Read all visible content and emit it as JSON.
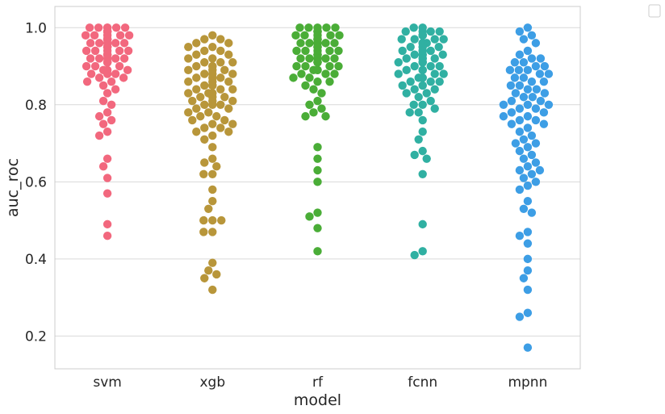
{
  "chart_data": {
    "type": "scatter",
    "subtype": "swarm",
    "xlabel": "model",
    "ylabel": "auc_roc",
    "categories": [
      "svm",
      "xgb",
      "rf",
      "fcnn",
      "mpnn"
    ],
    "ylim": [
      0.115,
      1.055
    ],
    "yticks": [
      0.2,
      0.4,
      0.6,
      0.8,
      1.0
    ],
    "ytick_labels": [
      "0.2",
      "0.4",
      "0.6",
      "0.8",
      "1.0"
    ],
    "grid": "horizontal",
    "legend": "top-right (empty)",
    "colors": [
      "#f2687e",
      "#b8963a",
      "#4aad37",
      "#30b0a2",
      "#3d9ee5"
    ],
    "series": [
      {
        "values": [
          1.0,
          1.0,
          1.0,
          1.0,
          1.0,
          1.0,
          0.99,
          0.99,
          0.99,
          0.99,
          0.99,
          0.98,
          0.98,
          0.98,
          0.98,
          0.98,
          0.97,
          0.97,
          0.97,
          0.97,
          0.97,
          0.96,
          0.96,
          0.96,
          0.96,
          0.96,
          0.95,
          0.95,
          0.95,
          0.95,
          0.95,
          0.94,
          0.94,
          0.94,
          0.94,
          0.94,
          0.93,
          0.93,
          0.93,
          0.93,
          0.93,
          0.92,
          0.92,
          0.92,
          0.92,
          0.92,
          0.91,
          0.91,
          0.91,
          0.91,
          0.9,
          0.9,
          0.9,
          0.89,
          0.89,
          0.89,
          0.88,
          0.88,
          0.88,
          0.87,
          0.87,
          0.86,
          0.86,
          0.85,
          0.84,
          0.83,
          0.81,
          0.8,
          0.78,
          0.77,
          0.76,
          0.75,
          0.73,
          0.72,
          0.66,
          0.64,
          0.61,
          0.57,
          0.49,
          0.46
        ]
      },
      {
        "values": [
          0.98,
          0.97,
          0.97,
          0.96,
          0.96,
          0.95,
          0.95,
          0.94,
          0.94,
          0.93,
          0.93,
          0.92,
          0.92,
          0.91,
          0.91,
          0.91,
          0.9,
          0.9,
          0.9,
          0.89,
          0.89,
          0.89,
          0.88,
          0.88,
          0.88,
          0.87,
          0.87,
          0.87,
          0.86,
          0.86,
          0.86,
          0.85,
          0.85,
          0.85,
          0.84,
          0.84,
          0.84,
          0.83,
          0.83,
          0.83,
          0.82,
          0.82,
          0.82,
          0.81,
          0.81,
          0.81,
          0.8,
          0.8,
          0.8,
          0.79,
          0.79,
          0.78,
          0.78,
          0.77,
          0.77,
          0.76,
          0.76,
          0.75,
          0.75,
          0.74,
          0.74,
          0.73,
          0.73,
          0.72,
          0.71,
          0.69,
          0.66,
          0.65,
          0.64,
          0.62,
          0.62,
          0.58,
          0.55,
          0.53,
          0.5,
          0.5,
          0.5,
          0.47,
          0.47,
          0.39,
          0.37,
          0.36,
          0.35,
          0.32
        ]
      },
      {
        "values": [
          1.0,
          1.0,
          1.0,
          1.0,
          1.0,
          0.99,
          0.99,
          0.99,
          0.99,
          0.99,
          0.98,
          0.98,
          0.98,
          0.98,
          0.98,
          0.97,
          0.97,
          0.97,
          0.97,
          0.97,
          0.96,
          0.96,
          0.96,
          0.96,
          0.96,
          0.95,
          0.95,
          0.95,
          0.95,
          0.95,
          0.94,
          0.94,
          0.94,
          0.94,
          0.94,
          0.93,
          0.93,
          0.93,
          0.93,
          0.93,
          0.92,
          0.92,
          0.92,
          0.92,
          0.92,
          0.91,
          0.91,
          0.91,
          0.91,
          0.9,
          0.9,
          0.9,
          0.9,
          0.89,
          0.89,
          0.89,
          0.88,
          0.88,
          0.88,
          0.87,
          0.87,
          0.86,
          0.86,
          0.85,
          0.84,
          0.83,
          0.81,
          0.8,
          0.79,
          0.78,
          0.77,
          0.77,
          0.69,
          0.66,
          0.63,
          0.6,
          0.52,
          0.51,
          0.48,
          0.42
        ]
      },
      {
        "values": [
          1.0,
          1.0,
          0.99,
          0.99,
          0.99,
          0.99,
          0.98,
          0.98,
          0.98,
          0.98,
          0.97,
          0.97,
          0.97,
          0.97,
          0.96,
          0.96,
          0.96,
          0.96,
          0.95,
          0.95,
          0.95,
          0.95,
          0.94,
          0.94,
          0.94,
          0.94,
          0.93,
          0.93,
          0.93,
          0.93,
          0.92,
          0.92,
          0.92,
          0.92,
          0.91,
          0.91,
          0.91,
          0.91,
          0.9,
          0.9,
          0.9,
          0.89,
          0.89,
          0.89,
          0.88,
          0.88,
          0.88,
          0.87,
          0.87,
          0.87,
          0.86,
          0.86,
          0.86,
          0.85,
          0.85,
          0.85,
          0.84,
          0.84,
          0.83,
          0.83,
          0.82,
          0.81,
          0.8,
          0.8,
          0.79,
          0.78,
          0.78,
          0.76,
          0.73,
          0.71,
          0.68,
          0.67,
          0.66,
          0.62,
          0.49,
          0.42,
          0.41
        ]
      },
      {
        "values": [
          1.0,
          0.99,
          0.98,
          0.97,
          0.96,
          0.94,
          0.93,
          0.92,
          0.92,
          0.91,
          0.91,
          0.9,
          0.9,
          0.89,
          0.89,
          0.89,
          0.88,
          0.88,
          0.87,
          0.87,
          0.86,
          0.86,
          0.85,
          0.85,
          0.84,
          0.84,
          0.83,
          0.83,
          0.82,
          0.82,
          0.81,
          0.81,
          0.8,
          0.8,
          0.8,
          0.79,
          0.79,
          0.78,
          0.78,
          0.77,
          0.77,
          0.76,
          0.76,
          0.75,
          0.75,
          0.74,
          0.73,
          0.72,
          0.71,
          0.7,
          0.7,
          0.69,
          0.68,
          0.67,
          0.66,
          0.65,
          0.64,
          0.63,
          0.63,
          0.62,
          0.61,
          0.6,
          0.59,
          0.58,
          0.55,
          0.53,
          0.52,
          0.47,
          0.46,
          0.44,
          0.4,
          0.37,
          0.35,
          0.32,
          0.26,
          0.25,
          0.17
        ]
      }
    ]
  }
}
